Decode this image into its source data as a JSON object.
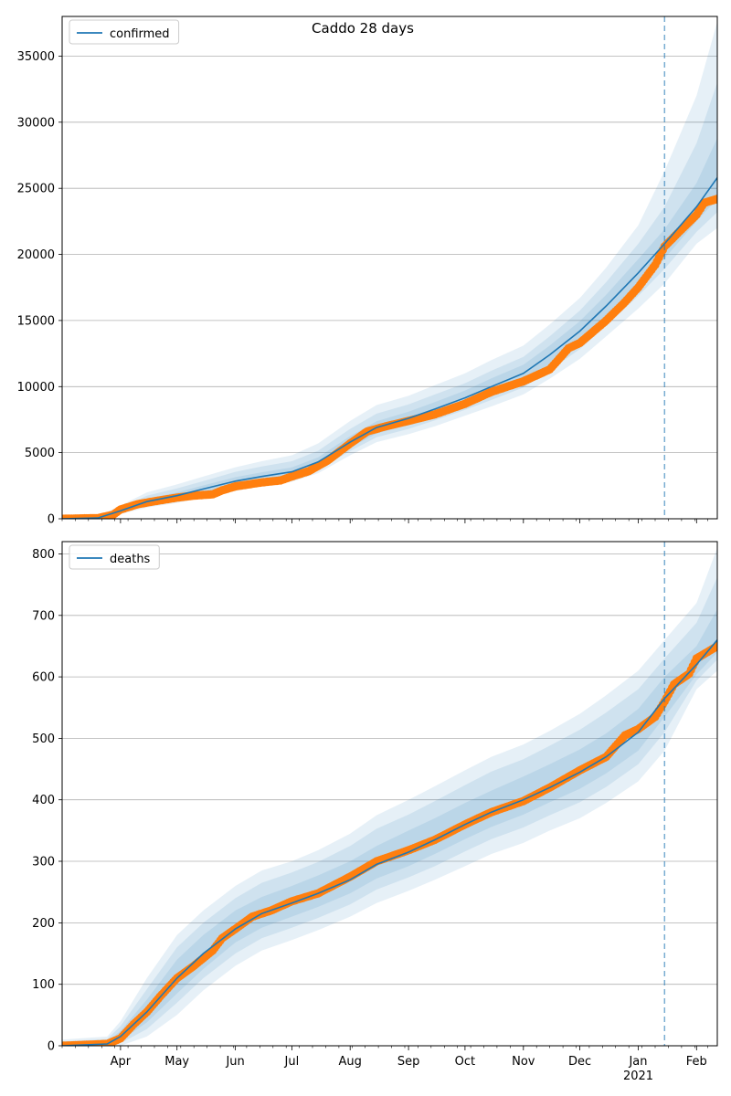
{
  "title": "Caddo 28 days",
  "colors": {
    "model": "#1f77b4",
    "observed": "#ff7f0e",
    "band": "#1f77b4",
    "grid": "#b0b0b0",
    "cutoff": "#1f77b4"
  },
  "chart_data": [
    {
      "type": "line",
      "legend_location": "upper left",
      "grid": "horizontal",
      "xlim": [
        "2020-03-01",
        "2021-02-12"
      ],
      "ylim": [
        0,
        38000
      ],
      "yticks": [
        0,
        5000,
        10000,
        15000,
        20000,
        25000,
        30000,
        35000
      ],
      "xtick_labels": [],
      "cutoff_date": "2021-01-15",
      "model_series": {
        "name": "confirmed",
        "x": [
          "2020-03-01",
          "2020-03-20",
          "2020-04-01",
          "2020-04-15",
          "2020-05-01",
          "2020-05-15",
          "2020-06-01",
          "2020-06-15",
          "2020-07-01",
          "2020-07-15",
          "2020-08-01",
          "2020-08-15",
          "2020-09-01",
          "2020-09-15",
          "2020-10-01",
          "2020-10-15",
          "2020-11-01",
          "2020-11-15",
          "2020-12-01",
          "2020-12-15",
          "2021-01-01",
          "2021-01-15",
          "2021-02-01",
          "2021-02-12"
        ],
        "y": [
          0,
          60,
          600,
          1300,
          1750,
          2250,
          2850,
          3200,
          3550,
          4300,
          5800,
          6900,
          7600,
          8300,
          9150,
          10000,
          11000,
          12400,
          14200,
          16100,
          18600,
          20800,
          23600,
          25800
        ],
        "bands": [
          {
            "lower": [
              0,
              0,
              350,
              850,
              1200,
              1600,
              2100,
              2450,
              2800,
              3450,
              4800,
              5800,
              6400,
              7000,
              7800,
              8500,
              9400,
              10600,
              12100,
              13800,
              15900,
              17800,
              20800,
              22000
            ],
            "upper": [
              30,
              200,
              1000,
              2000,
              2600,
              3200,
              3900,
              4350,
              4800,
              5700,
              7400,
              8600,
              9300,
              10100,
              11000,
              12000,
              13100,
              14700,
              16700,
              19000,
              22200,
              26300,
              32000,
              37600
            ]
          },
          {
            "lower": [
              0,
              10,
              430,
              1000,
              1380,
              1800,
              2330,
              2680,
              3030,
              3720,
              5120,
              6160,
              6800,
              7440,
              8240,
              8990,
              9930,
              11230,
              12830,
              14620,
              16860,
              18900,
              21700,
              23200
            ],
            "upper": [
              20,
              140,
              850,
              1750,
              2300,
              2850,
              3550,
              3950,
              4350,
              5150,
              6800,
              7950,
              8650,
              9400,
              10250,
              11200,
              12250,
              13800,
              15750,
              17900,
              20800,
              23600,
              28400,
              33000
            ]
          },
          {
            "lower": [
              0,
              25,
              500,
              1120,
              1530,
              1980,
              2540,
              2880,
              3230,
              3950,
              5380,
              6450,
              7100,
              7780,
              8600,
              9380,
              10350,
              11700,
              13400,
              15250,
              17560,
              19700,
              22500,
              24200
            ],
            "upper": [
              10,
              100,
              720,
              1500,
              2000,
              2520,
              3150,
              3520,
              3880,
              4650,
              6250,
              7380,
              8100,
              8820,
              9700,
              10620,
              11650,
              13100,
              14950,
              16950,
              19640,
              21900,
              25400,
              28800
            ]
          }
        ]
      },
      "observed_series": {
        "x": [
          "2020-03-01",
          "2020-03-20",
          "2020-03-28",
          "2020-04-01",
          "2020-04-10",
          "2020-04-20",
          "2020-05-01",
          "2020-05-10",
          "2020-05-20",
          "2020-05-25",
          "2020-06-01",
          "2020-06-15",
          "2020-06-25",
          "2020-07-01",
          "2020-07-10",
          "2020-07-20",
          "2020-08-01",
          "2020-08-10",
          "2020-08-20",
          "2020-09-01",
          "2020-09-15",
          "2020-10-01",
          "2020-10-15",
          "2020-11-01",
          "2020-11-15",
          "2020-11-25",
          "2020-12-01",
          "2020-12-15",
          "2020-12-25",
          "2021-01-01",
          "2021-01-10",
          "2021-01-15",
          "2021-01-22",
          "2021-02-01",
          "2021-02-05",
          "2021-02-12"
        ],
        "y": [
          0,
          50,
          300,
          700,
          1100,
          1350,
          1600,
          1750,
          1850,
          2150,
          2450,
          2750,
          2900,
          3200,
          3600,
          4400,
          5700,
          6600,
          7000,
          7400,
          7900,
          8700,
          9600,
          10400,
          11300,
          12900,
          13300,
          15000,
          16400,
          17500,
          19200,
          20600,
          21600,
          23000,
          23900,
          24200
        ]
      }
    },
    {
      "type": "line",
      "legend_location": "upper left",
      "grid": "horizontal",
      "xlim": [
        "2020-03-01",
        "2021-02-12"
      ],
      "ylim": [
        0,
        820
      ],
      "yticks": [
        0,
        100,
        200,
        300,
        400,
        500,
        600,
        700,
        800
      ],
      "xtick_labels": [
        {
          "label": "Apr",
          "date": "2020-04-01"
        },
        {
          "label": "May",
          "date": "2020-05-01"
        },
        {
          "label": "Jun",
          "date": "2020-06-01"
        },
        {
          "label": "Jul",
          "date": "2020-07-01"
        },
        {
          "label": "Aug",
          "date": "2020-08-01"
        },
        {
          "label": "Sep",
          "date": "2020-09-01"
        },
        {
          "label": "Oct",
          "date": "2020-10-01"
        },
        {
          "label": "Nov",
          "date": "2020-11-01"
        },
        {
          "label": "Dec",
          "date": "2020-12-01"
        },
        {
          "label": "Jan",
          "date": "2021-01-01",
          "sublabel": "2021"
        },
        {
          "label": "Feb",
          "date": "2021-02-01"
        }
      ],
      "cutoff_date": "2021-01-15",
      "model_series": {
        "name": "deaths",
        "x": [
          "2020-03-01",
          "2020-03-25",
          "2020-04-01",
          "2020-04-15",
          "2020-05-01",
          "2020-05-15",
          "2020-06-01",
          "2020-06-15",
          "2020-07-01",
          "2020-07-15",
          "2020-08-01",
          "2020-08-15",
          "2020-09-01",
          "2020-09-15",
          "2020-10-01",
          "2020-10-15",
          "2020-11-01",
          "2020-11-15",
          "2020-12-01",
          "2020-12-15",
          "2021-01-01",
          "2021-01-15",
          "2021-02-01",
          "2021-02-12"
        ],
        "y": [
          0,
          3,
          15,
          55,
          110,
          150,
          190,
          215,
          232,
          248,
          270,
          295,
          315,
          335,
          360,
          380,
          400,
          420,
          445,
          470,
          510,
          565,
          620,
          660
        ],
        "bands": [
          {
            "lower": [
              0,
              0,
              0,
              15,
              50,
              90,
              130,
              155,
              172,
              188,
              210,
              232,
              252,
              270,
              292,
              312,
              330,
              350,
              370,
              395,
              430,
              480,
              580,
              610
            ],
            "upper": [
              10,
              15,
              40,
              110,
              180,
              220,
              260,
              285,
              300,
              318,
              345,
              375,
              400,
              422,
              448,
              470,
              490,
              512,
              540,
              570,
              610,
              660,
              720,
              810
            ]
          },
          {
            "lower": [
              0,
              0,
              4,
              27,
              70,
              110,
              150,
              175,
              192,
              208,
              230,
              254,
              274,
              292,
              316,
              336,
              355,
              375,
              396,
              421,
              458,
              510,
              594,
              628
            ],
            "upper": [
              7,
              11,
              32,
              92,
              160,
              200,
              240,
              265,
              282,
              299,
              325,
              353,
              376,
              398,
              424,
              446,
              466,
              488,
              514,
              542,
              580,
              630,
              688,
              762
            ]
          },
          {
            "lower": [
              0,
              1,
              8,
              38,
              85,
              125,
              168,
              192,
              210,
              226,
              248,
              272,
              292,
              312,
              336,
              356,
              376,
              396,
              418,
              443,
              480,
              535,
              604,
              640
            ],
            "upper": [
              4,
              7,
              24,
              75,
              140,
              180,
              220,
              242,
              260,
              277,
              300,
              325,
              350,
              370,
              395,
              415,
              438,
              458,
              482,
              508,
              548,
              600,
              650,
              710
            ]
          }
        ]
      },
      "observed_series": {
        "x": [
          "2020-03-01",
          "2020-03-25",
          "2020-04-01",
          "2020-04-08",
          "2020-04-15",
          "2020-04-22",
          "2020-05-01",
          "2020-05-10",
          "2020-05-20",
          "2020-05-25",
          "2020-06-01",
          "2020-06-10",
          "2020-06-20",
          "2020-07-01",
          "2020-07-15",
          "2020-08-01",
          "2020-08-15",
          "2020-09-01",
          "2020-09-15",
          "2020-10-01",
          "2020-10-15",
          "2020-11-01",
          "2020-11-15",
          "2020-12-01",
          "2020-12-15",
          "2020-12-25",
          "2021-01-01",
          "2021-01-10",
          "2021-01-15",
          "2021-01-20",
          "2021-01-28",
          "2021-02-01",
          "2021-02-12"
        ],
        "y": [
          0,
          3,
          12,
          35,
          55,
          80,
          110,
          130,
          155,
          175,
          190,
          210,
          220,
          235,
          248,
          275,
          300,
          318,
          335,
          360,
          380,
          398,
          420,
          448,
          470,
          505,
          515,
          535,
          560,
          588,
          605,
          630,
          650
        ]
      }
    }
  ]
}
